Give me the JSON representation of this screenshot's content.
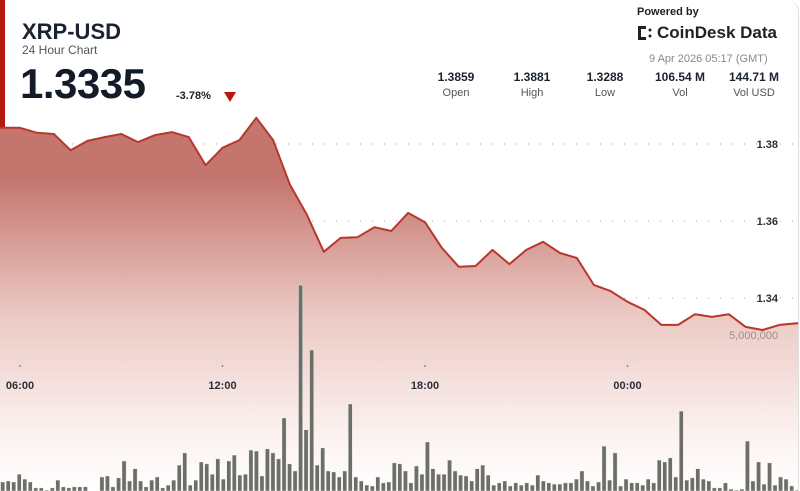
{
  "header": {
    "symbol": "XRP-USD",
    "subtitle": "24 Hour Chart",
    "price": "1.3335",
    "change": "-3.78%",
    "change_direction": "down-triangle-icon"
  },
  "branding": {
    "powered_by": "Powered by",
    "logo_text": "CoinDesk Data",
    "timestamp": "9 Apr 2026 05:17 (GMT)"
  },
  "stats": [
    {
      "value": "1.3859",
      "label": "Open"
    },
    {
      "value": "1.3881",
      "label": "High"
    },
    {
      "value": "1.3288",
      "label": "Low"
    },
    {
      "value": "106.54 M",
      "label": "Vol"
    },
    {
      "value": "144.71 M",
      "label": "Vol USD"
    }
  ],
  "colors": {
    "accent": "#b5180e",
    "line": "#b8372c",
    "volume": "#6b6f68"
  },
  "chart_data": {
    "type": "line",
    "x_tick_labels": [
      "06:00",
      "12:00",
      "18:00",
      "00:00"
    ],
    "y_tick_labels": [
      "1.38",
      "1.36",
      "1.34"
    ],
    "volume_tick_label": "5,000,000",
    "ylim": [
      1.325,
      1.39
    ],
    "grid": true,
    "price_series": {
      "times": [
        "05:30",
        "06:00",
        "06:30",
        "07:00",
        "07:30",
        "08:00",
        "08:30",
        "09:00",
        "09:30",
        "10:00",
        "10:30",
        "11:00",
        "11:30",
        "12:00",
        "12:30",
        "13:00",
        "13:30",
        "14:00",
        "14:30",
        "15:00",
        "15:30",
        "16:00",
        "16:30",
        "17:00",
        "17:30",
        "18:00",
        "18:30",
        "19:00",
        "19:30",
        "20:00",
        "20:30",
        "21:00",
        "21:30",
        "22:00",
        "22:30",
        "23:00",
        "23:30",
        "00:00",
        "00:30",
        "01:00",
        "01:30",
        "02:00",
        "02:30",
        "03:00",
        "03:30",
        "04:00",
        "04:30",
        "05:00"
      ],
      "values": [
        1.3842,
        1.3842,
        1.3829,
        1.3826,
        1.3784,
        1.3808,
        1.3818,
        1.3826,
        1.3805,
        1.3823,
        1.3831,
        1.3818,
        1.3745,
        1.379,
        1.381,
        1.3868,
        1.381,
        1.3694,
        1.3616,
        1.352,
        1.3556,
        1.3558,
        1.3584,
        1.3574,
        1.3621,
        1.3597,
        1.353,
        1.3481,
        1.3483,
        1.3525,
        1.3488,
        1.3525,
        1.3546,
        1.3517,
        1.3504,
        1.3434,
        1.3418,
        1.339,
        1.3369,
        1.333,
        1.333,
        1.3358,
        1.3351,
        1.3358,
        1.3325,
        1.3317,
        1.333,
        1.3335
      ]
    },
    "volume_series_millions": [
      0.29,
      0.32,
      0.29,
      0.54,
      0.38,
      0.29,
      0.1,
      0.1,
      0.03,
      0.1,
      0.35,
      0.13,
      0.1,
      0.13,
      0.13,
      0.13,
      0.0,
      0.0,
      0.45,
      0.48,
      0.13,
      0.42,
      0.96,
      0.32,
      0.71,
      0.32,
      0.13,
      0.35,
      0.45,
      0.1,
      0.19,
      0.35,
      0.83,
      1.22,
      0.19,
      0.35,
      0.93,
      0.87,
      0.54,
      1.03,
      0.38,
      0.96,
      1.15,
      0.51,
      0.54,
      1.31,
      1.28,
      0.48,
      1.35,
      1.22,
      1.03,
      2.34,
      0.87,
      0.64,
      6.6,
      1.96,
      4.52,
      0.83,
      1.38,
      0.64,
      0.61,
      0.45,
      0.64,
      2.79,
      0.45,
      0.32,
      0.19,
      0.16,
      0.45,
      0.26,
      0.29,
      0.9,
      0.87,
      0.64,
      0.26,
      0.8,
      0.54,
      1.57,
      0.71,
      0.54,
      0.54,
      0.99,
      0.64,
      0.51,
      0.48,
      0.32,
      0.71,
      0.83,
      0.51,
      0.19,
      0.26,
      0.32,
      0.16,
      0.26,
      0.19,
      0.26,
      0.19,
      0.51,
      0.32,
      0.26,
      0.22,
      0.22,
      0.26,
      0.26,
      0.38,
      0.64,
      0.32,
      0.16,
      0.29,
      1.44,
      0.35,
      1.22,
      0.16,
      0.38,
      0.26,
      0.26,
      0.19,
      0.38,
      0.26,
      0.99,
      0.93,
      1.06,
      0.45,
      2.56,
      0.35,
      0.42,
      0.71,
      0.38,
      0.32,
      0.1,
      0.1,
      0.26,
      0.06,
      0.03,
      0.06,
      1.6,
      0.32,
      0.93,
      0.22,
      0.9,
      0.19,
      0.45,
      0.38,
      0.16,
      0.03
    ]
  }
}
